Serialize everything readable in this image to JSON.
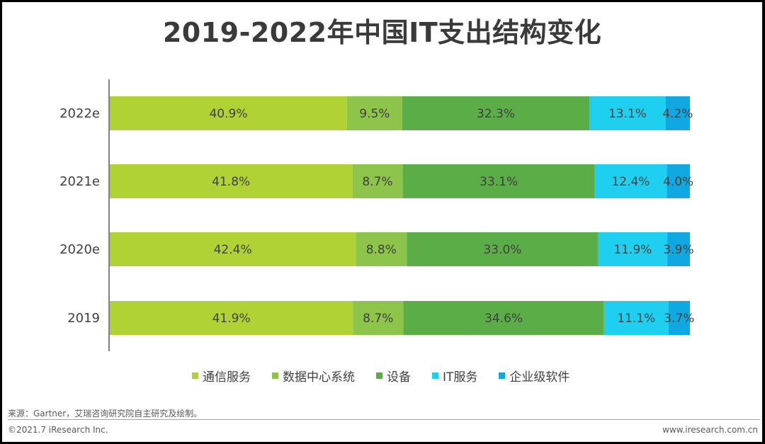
{
  "chart_data": {
    "type": "bar",
    "orientation": "horizontal-stacked-100",
    "title": "2019-2022年中国IT支出结构变化",
    "categories": [
      "2022e",
      "2021e",
      "2020e",
      "2019"
    ],
    "series": [
      {
        "name": "通信服务",
        "color": "#b0d235",
        "values": [
          40.9,
          41.8,
          42.4,
          41.9
        ],
        "labels": [
          "40.9%",
          "41.8%",
          "42.4%",
          "41.9%"
        ]
      },
      {
        "name": "数据中心系统",
        "color": "#8cc54a",
        "values": [
          9.5,
          8.7,
          8.8,
          8.7
        ],
        "labels": [
          "9.5%",
          "8.7%",
          "8.8%",
          "8.7%"
        ]
      },
      {
        "name": "设备",
        "color": "#5bae47",
        "values": [
          32.3,
          33.1,
          33.0,
          34.6
        ],
        "labels": [
          "32.3%",
          "33.1%",
          "33.0%",
          "34.6%"
        ]
      },
      {
        "name": "IT服务",
        "color": "#1fcff0",
        "values": [
          13.1,
          12.4,
          11.9,
          11.1
        ],
        "labels": [
          "13.1%",
          "12.4%",
          "11.9%",
          "11.1%"
        ]
      },
      {
        "name": "企业级软件",
        "color": "#10a8e0",
        "values": [
          4.2,
          4.0,
          3.9,
          3.7
        ],
        "labels": [
          "4.2%",
          "4.0%",
          "3.9%",
          "3.7%"
        ]
      }
    ],
    "legend_position": "bottom",
    "grid": false
  },
  "footer": {
    "source": "来源：Gartner，艾瑞咨询研究院自主研究及绘制。",
    "copyright": "©2021.7 iResearch Inc.",
    "website": "www.iresearch.com.cn"
  }
}
